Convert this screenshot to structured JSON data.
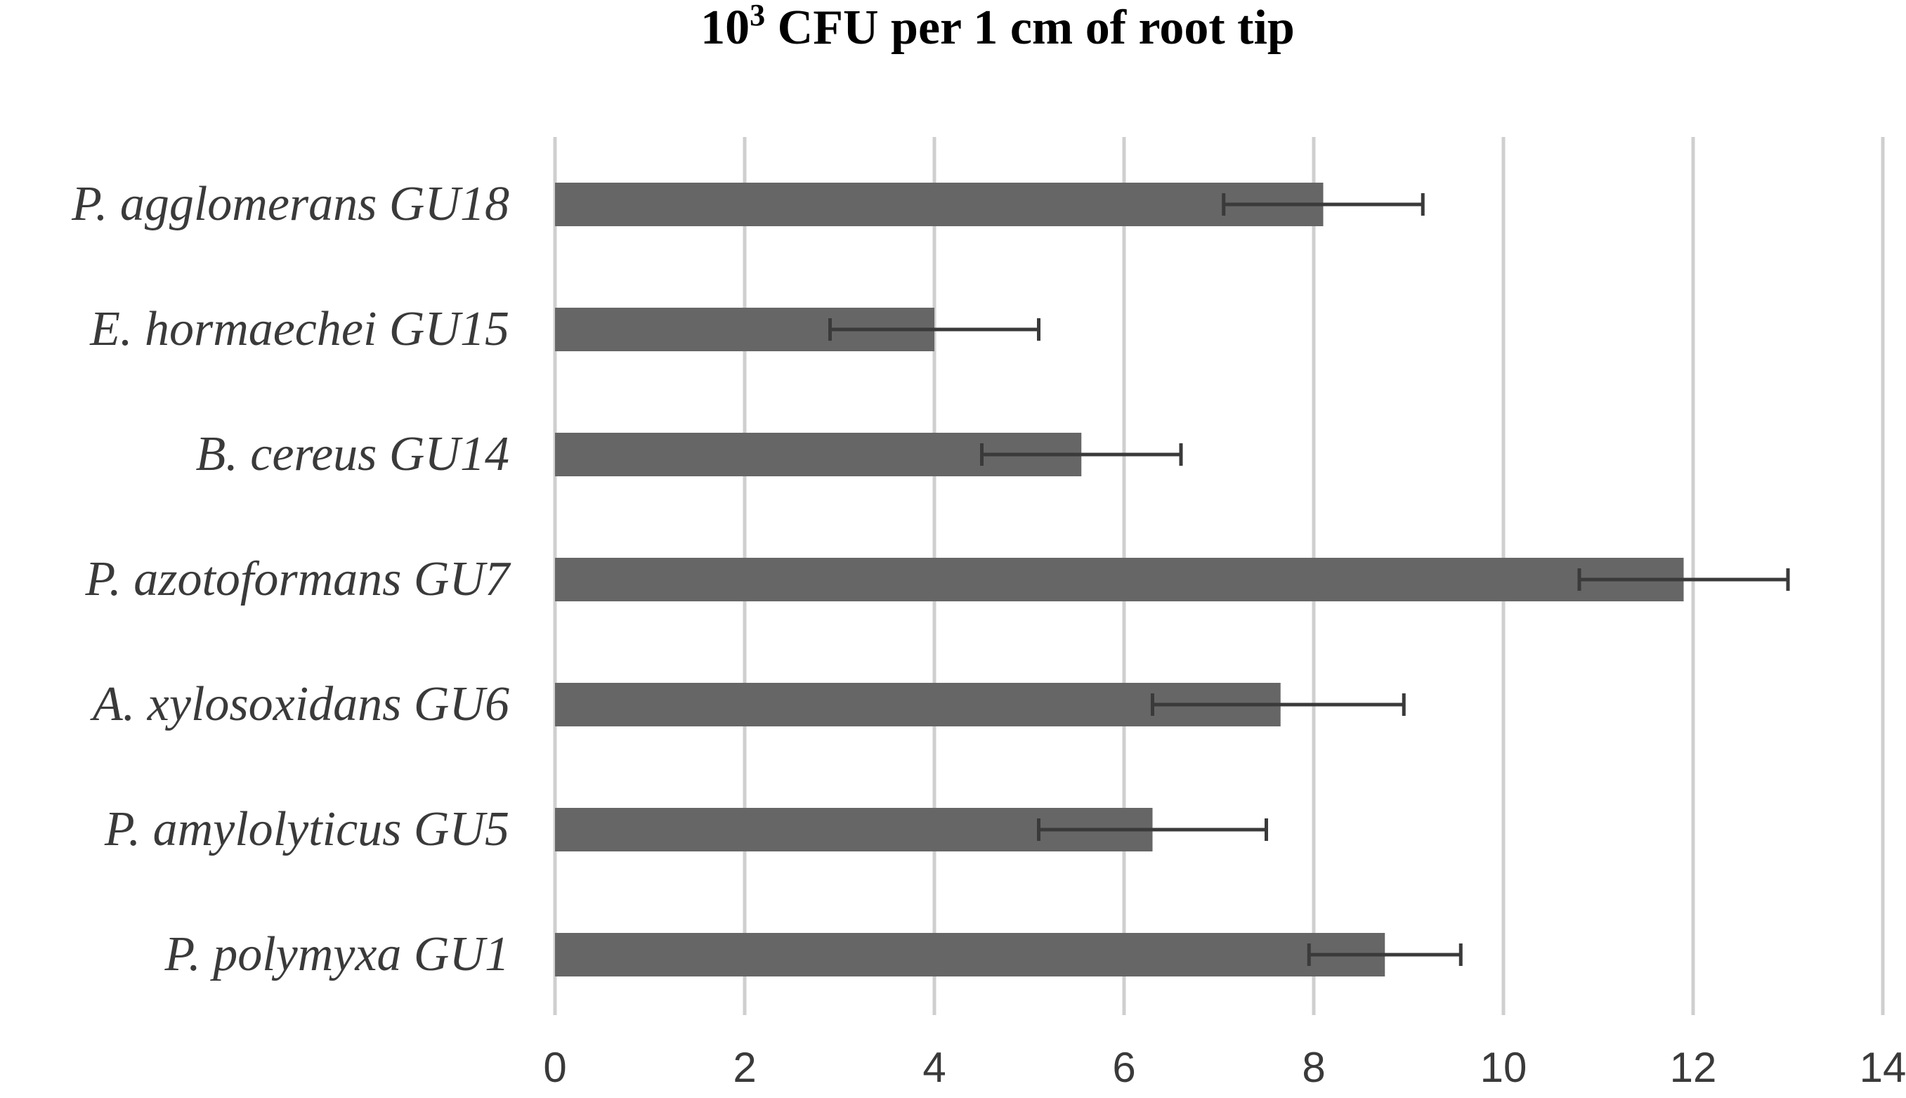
{
  "chart_data": {
    "type": "bar",
    "orientation": "horizontal",
    "title": {
      "base": "10",
      "superscript": "3",
      "rest": " CFU per 1 cm of root tip"
    },
    "xlabel": "",
    "ylabel": "",
    "xlim": [
      0,
      14
    ],
    "x_ticks": [
      "0",
      "2",
      "4",
      "6",
      "8",
      "10",
      "12",
      "14"
    ],
    "grid": "vertical",
    "bar_color": "#666666",
    "categories": [
      "P. agglomerans GU18",
      "E. hormaechei GU15",
      "B. cereus GU14",
      "P. azotoformans GU7",
      "A. xylosoxidans GU6",
      "P. amylolyticus GU5",
      "P. polymyxa GU1"
    ],
    "values": [
      8.1,
      4.0,
      5.55,
      11.9,
      7.65,
      6.3,
      8.75
    ],
    "error_low": [
      7.05,
      2.9,
      4.5,
      10.8,
      6.3,
      5.1,
      7.95
    ],
    "error_high": [
      9.15,
      5.1,
      6.6,
      13.0,
      8.95,
      7.5,
      9.55
    ]
  }
}
